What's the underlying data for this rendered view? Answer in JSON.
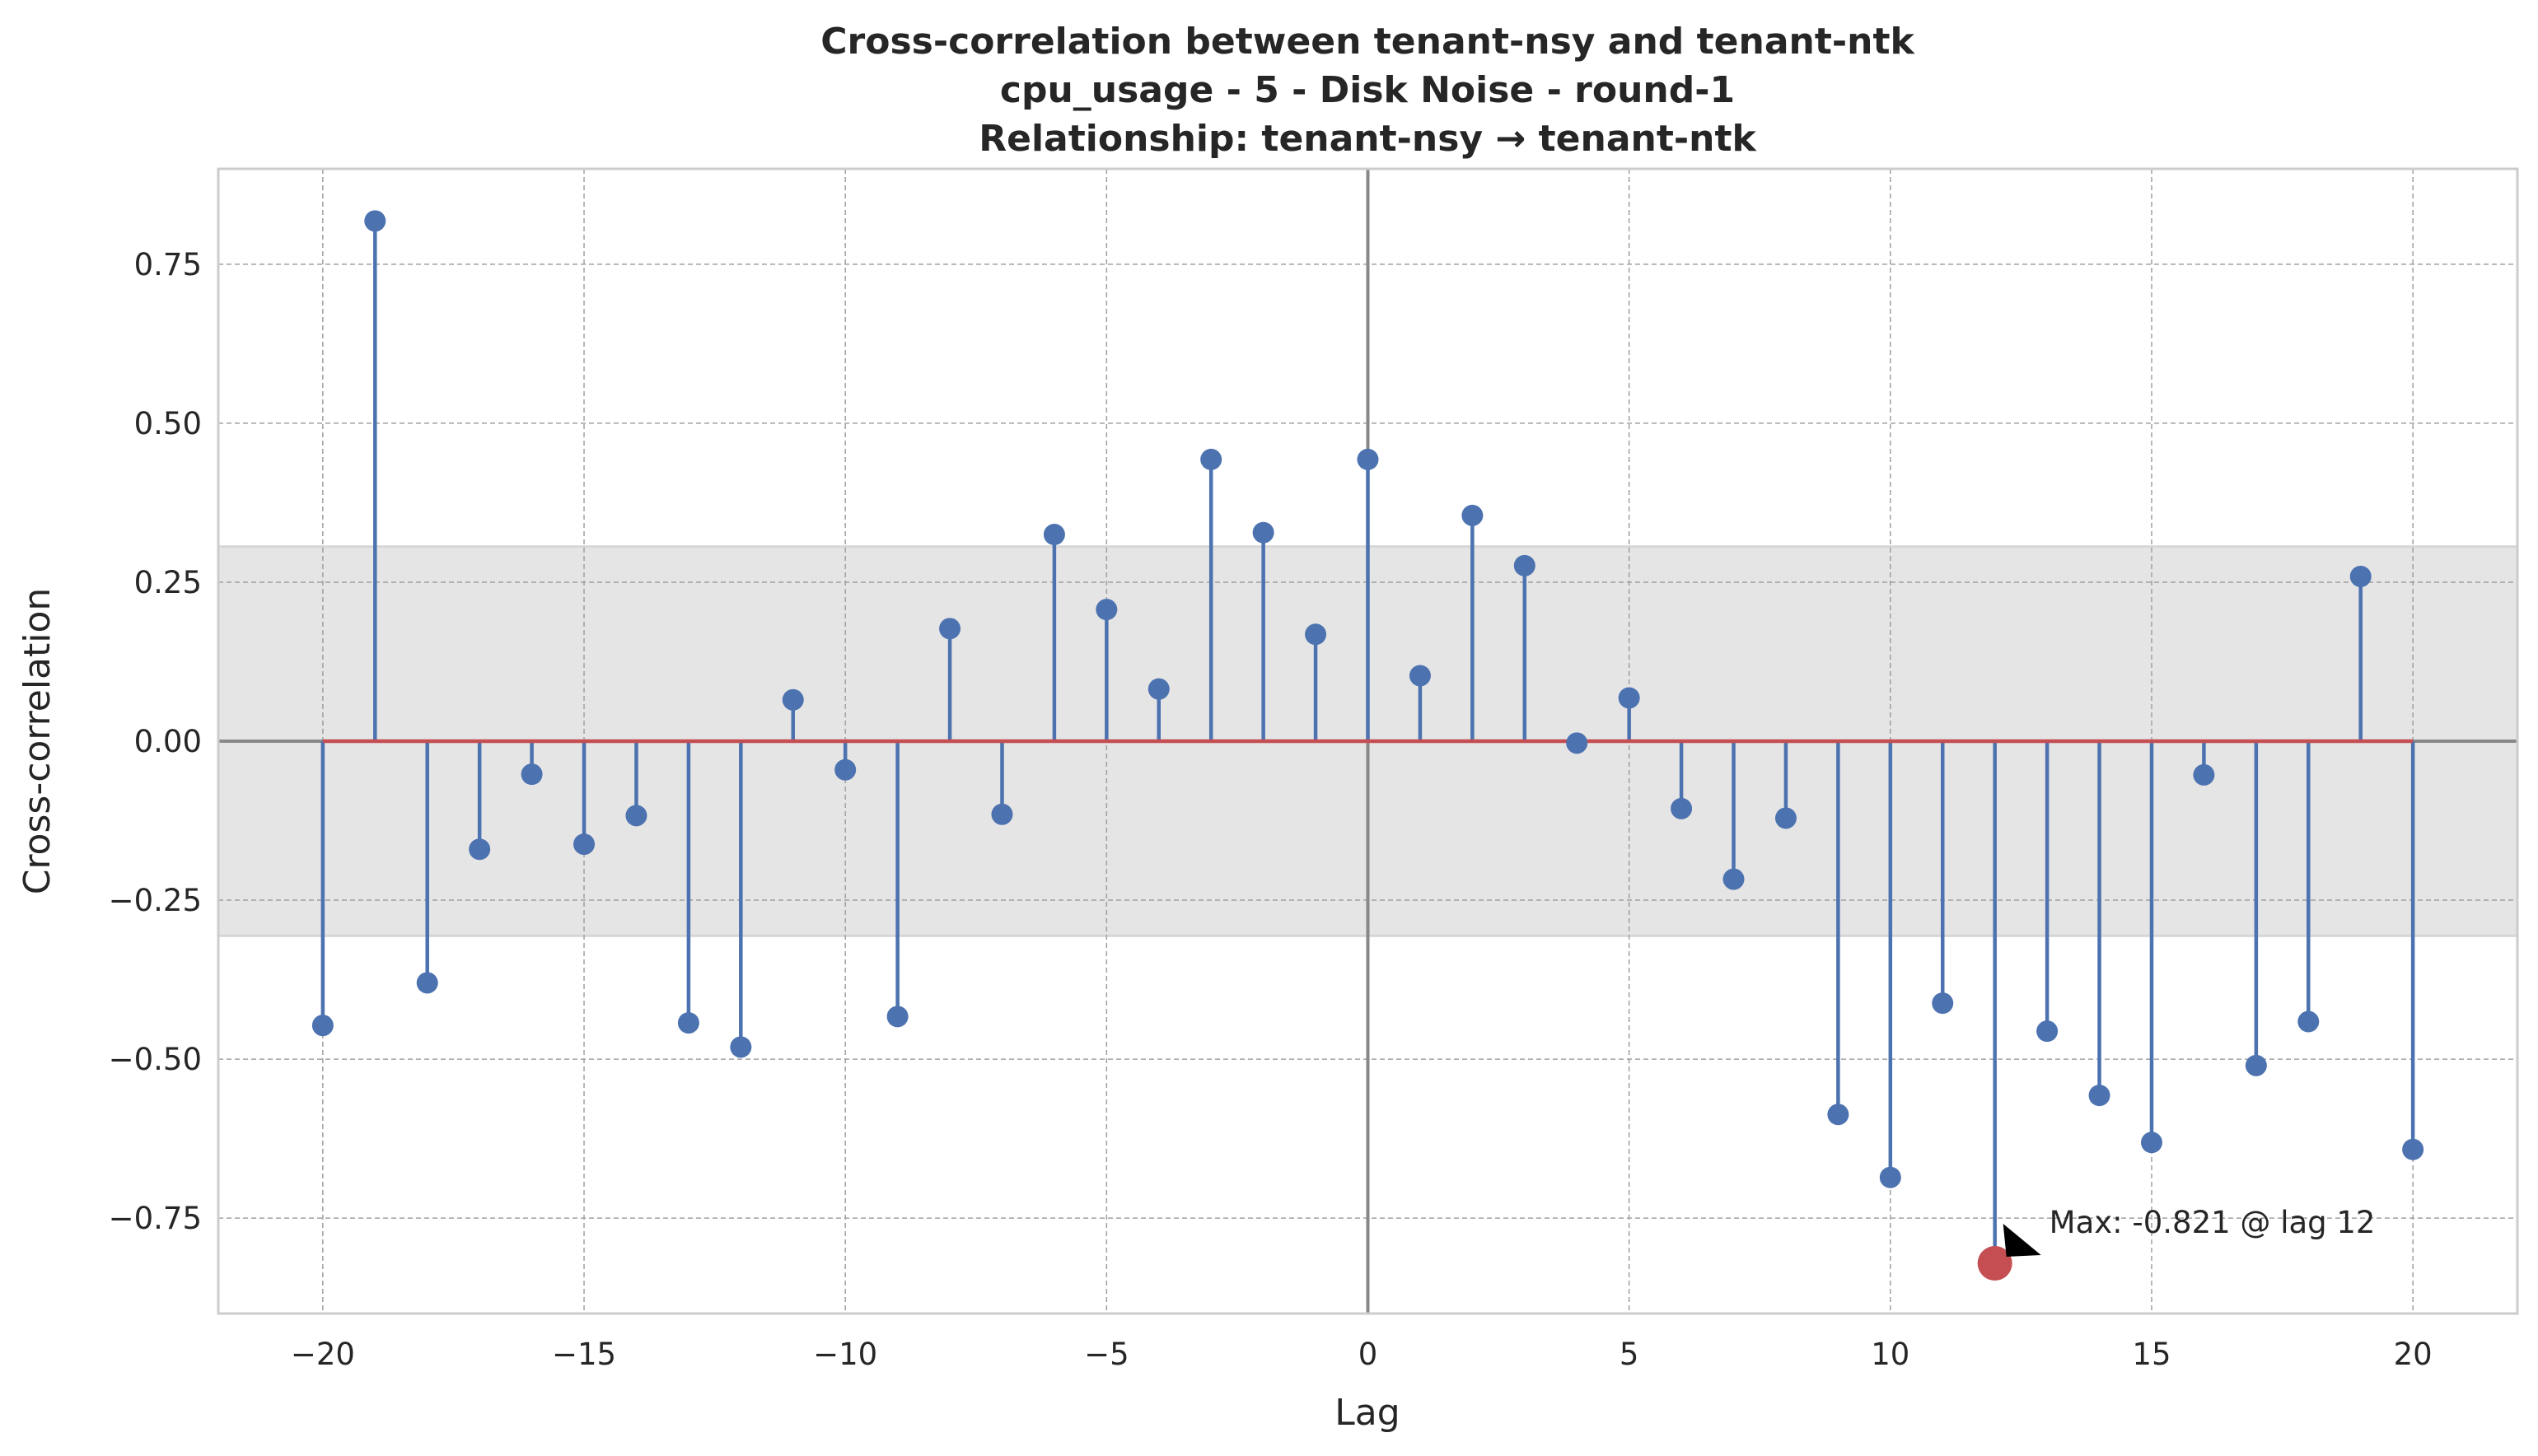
{
  "chart_data": {
    "type": "stem",
    "title": [
      "Cross-correlation between tenant-nsy and tenant-ntk",
      "cpu_usage - 5 - Disk Noise - round-1",
      "Relationship: tenant-nsy → tenant-ntk"
    ],
    "xlabel": "Lag",
    "ylabel": "Cross-correlation",
    "xlim": [
      -22,
      22
    ],
    "ylim": [
      -0.9,
      0.9
    ],
    "xticks": [
      -20,
      -15,
      -10,
      -5,
      0,
      5,
      10,
      15,
      20
    ],
    "xtick_labels": [
      "−20",
      "−15",
      "−10",
      "−5",
      "0",
      "5",
      "10",
      "15",
      "20"
    ],
    "yticks": [
      0.75,
      0.5,
      0.25,
      0.0,
      -0.25,
      -0.5,
      -0.75
    ],
    "ytick_labels": [
      "0.75",
      "0.50",
      "0.25",
      "0.00",
      "−0.25",
      "−0.50",
      "−0.75"
    ],
    "grid": true,
    "confidence_band": [
      -0.306,
      0.306
    ],
    "x": [
      -20,
      -19,
      -18,
      -17,
      -16,
      -15,
      -14,
      -13,
      -12,
      -11,
      -10,
      -9,
      -8,
      -7,
      -6,
      -5,
      -4,
      -3,
      -2,
      -1,
      0,
      1,
      2,
      3,
      4,
      5,
      6,
      7,
      8,
      9,
      10,
      11,
      12,
      13,
      14,
      15,
      16,
      17,
      18,
      19,
      20
    ],
    "values": [
      -0.447,
      0.818,
      -0.38,
      -0.17,
      -0.052,
      -0.162,
      -0.117,
      -0.443,
      -0.481,
      0.065,
      -0.045,
      -0.433,
      0.177,
      -0.115,
      0.325,
      0.207,
      0.082,
      0.443,
      0.328,
      0.168,
      0.443,
      0.103,
      0.355,
      0.276,
      -0.003,
      0.068,
      -0.106,
      -0.217,
      -0.121,
      -0.587,
      -0.686,
      -0.412,
      -0.821,
      -0.456,
      -0.557,
      -0.631,
      -0.053,
      -0.51,
      -0.441,
      0.259,
      -0.642
    ],
    "max_point": {
      "lag": 12,
      "value": -0.821
    },
    "annotation": "Max: -0.821 @ lag 12",
    "colors": {
      "stem": "#4c72b0",
      "baseline": "#c44e52",
      "max_marker": "#c44e52",
      "band": "#e5e5e5",
      "zero_line": "#888888",
      "grid": "#a0a0a0"
    }
  }
}
